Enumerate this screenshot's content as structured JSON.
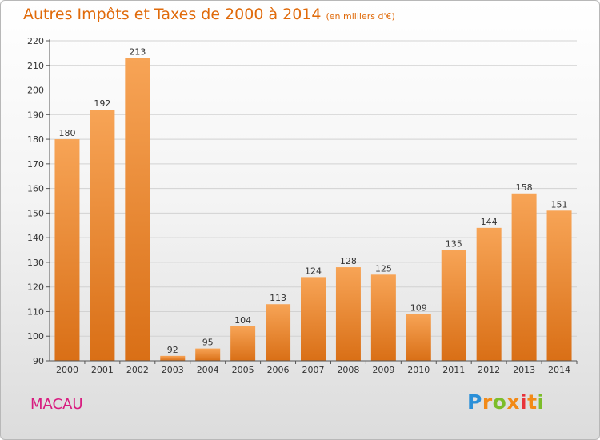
{
  "title": "Autres Impôts et Taxes de 2000 à 2014",
  "unit_note": "(en milliers d'€)",
  "region": "MACAU",
  "logo": {
    "text": "Proxiti"
  },
  "colors": {
    "bar_light": "#f7a456",
    "bar_dark": "#d96f16",
    "title": "#e06a0a",
    "region": "#d81b7f"
  },
  "chart_data": {
    "type": "bar",
    "title": "Autres Impôts et Taxes de 2000 à 2014",
    "xlabel": "",
    "ylabel": "",
    "categories": [
      "2000",
      "2001",
      "2002",
      "2003",
      "2004",
      "2005",
      "2006",
      "2007",
      "2008",
      "2009",
      "2010",
      "2011",
      "2012",
      "2013",
      "2014"
    ],
    "values": [
      180,
      192,
      213,
      92,
      95,
      104,
      113,
      124,
      128,
      125,
      109,
      135,
      144,
      158,
      151
    ],
    "ylim": [
      90,
      220
    ],
    "yticks": [
      90,
      100,
      110,
      120,
      130,
      140,
      150,
      160,
      170,
      180,
      190,
      200,
      210,
      220
    ],
    "grid": true,
    "legend": "none"
  }
}
